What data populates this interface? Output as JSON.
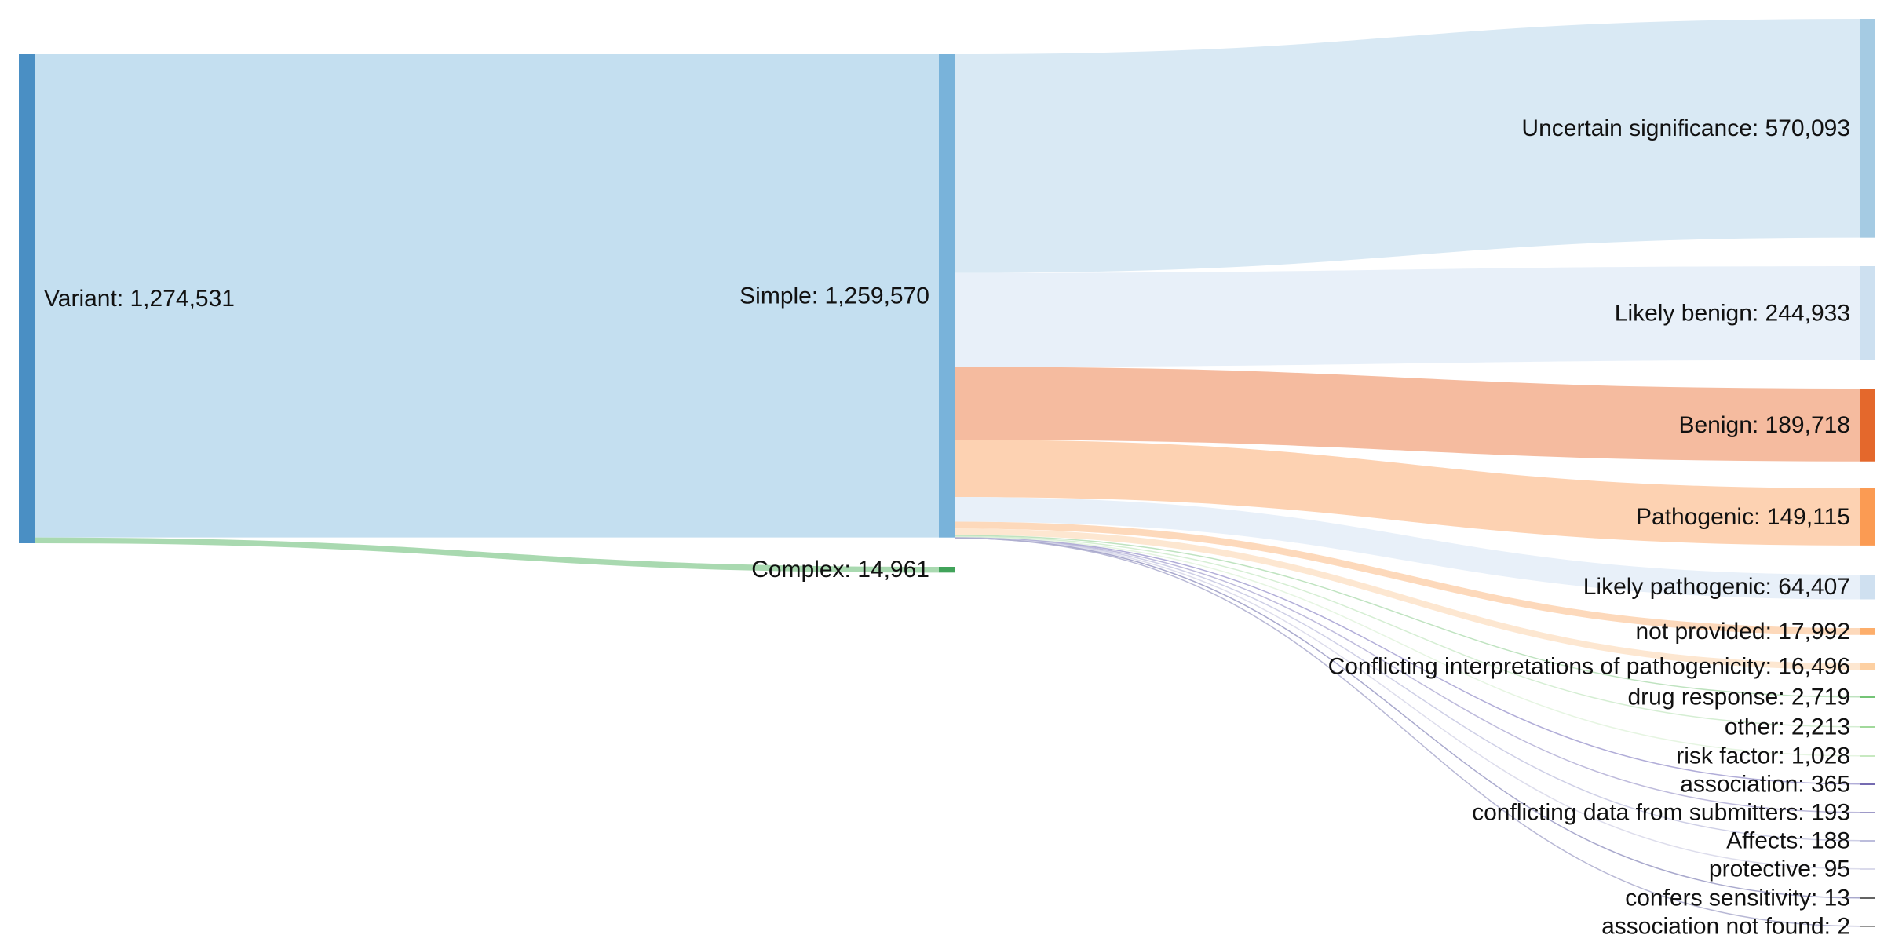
{
  "chart_data": {
    "type": "sankey",
    "nodes": [
      {
        "id": "variant",
        "label": "Variant: 1,274,531",
        "name": "Variant",
        "value": 1274531,
        "color": "#4a8fc4"
      },
      {
        "id": "simple",
        "label": "Simple: 1,259,570",
        "name": "Simple",
        "value": 1259570,
        "color": "#79b3da"
      },
      {
        "id": "complex",
        "label": "Complex: 14,961",
        "name": "Complex",
        "value": 14961,
        "color": "#41a35a"
      },
      {
        "id": "uncertain",
        "label": "Uncertain significance: 570,093",
        "name": "Uncertain significance",
        "value": 570093,
        "color": "#a5cbe3"
      },
      {
        "id": "likely-benign",
        "label": "Likely benign: 244,933",
        "name": "Likely benign",
        "value": 244933,
        "color": "#cde0f0"
      },
      {
        "id": "benign",
        "label": "Benign: 189,718",
        "name": "Benign",
        "value": 189718,
        "color": "#e4682c"
      },
      {
        "id": "pathogenic",
        "label": "Pathogenic: 149,115",
        "name": "Pathogenic",
        "value": 149115,
        "color": "#fb9b53"
      },
      {
        "id": "likely-pathogenic",
        "label": "Likely pathogenic: 64,407",
        "name": "Likely pathogenic",
        "value": 64407,
        "color": "#cfe0f0"
      },
      {
        "id": "not-provided",
        "label": "not provided: 17,992",
        "name": "not provided",
        "value": 17992,
        "color": "#fdae6b"
      },
      {
        "id": "conflicting-interpretations",
        "label": "Conflicting interpretations of pathogenicity: 16,496",
        "name": "Conflicting interpretations of pathogenicity",
        "value": 16496,
        "color": "#fdd0a2"
      },
      {
        "id": "drug-response",
        "label": "drug response: 2,719",
        "name": "drug response",
        "value": 2719,
        "color": "#74c476"
      },
      {
        "id": "other",
        "label": "other: 2,213",
        "name": "other",
        "value": 2213,
        "color": "#a1d99b"
      },
      {
        "id": "risk-factor",
        "label": "risk factor: 1,028",
        "name": "risk factor",
        "value": 1028,
        "color": "#c7e9c0"
      },
      {
        "id": "association",
        "label": "association: 365",
        "name": "association",
        "value": 365,
        "color": "#756bb1"
      },
      {
        "id": "conflicting-data",
        "label": "conflicting data from submitters: 193",
        "name": "conflicting data from submitters",
        "value": 193,
        "color": "#9e9ac8"
      },
      {
        "id": "affects",
        "label": "Affects: 188",
        "name": "Affects",
        "value": 188,
        "color": "#bcbddc"
      },
      {
        "id": "protective",
        "label": "protective: 95",
        "name": "protective",
        "value": 95,
        "color": "#dadaeb"
      },
      {
        "id": "confers-sensitivity",
        "label": "confers sensitivity: 13",
        "name": "confers sensitivity",
        "value": 13,
        "color": "#636363"
      },
      {
        "id": "association-not-found",
        "label": "association not found: 2",
        "name": "association not found",
        "value": 2,
        "color": "#969696"
      }
    ],
    "links": [
      {
        "source": "variant",
        "target": "simple",
        "value": 1259570,
        "color": "#c4dff0"
      },
      {
        "source": "variant",
        "target": "complex",
        "value": 14961,
        "color": "#a9d9b0"
      },
      {
        "source": "simple",
        "target": "uncertain",
        "value": 570093,
        "color": "#d9e9f4"
      },
      {
        "source": "simple",
        "target": "likely-benign",
        "value": 244933,
        "color": "#e8f0f9"
      },
      {
        "source": "simple",
        "target": "benign",
        "value": 189718,
        "color": "#f5bb9f"
      },
      {
        "source": "simple",
        "target": "pathogenic",
        "value": 149115,
        "color": "#fdd2b2"
      },
      {
        "source": "simple",
        "target": "likely-pathogenic",
        "value": 64407,
        "color": "#e8f0f9"
      },
      {
        "source": "simple",
        "target": "not-provided",
        "value": 17992,
        "color": "#fdd9bb"
      },
      {
        "source": "simple",
        "target": "conflicting-interpretations",
        "value": 16496,
        "color": "#fde7d1"
      },
      {
        "source": "simple",
        "target": "drug-response",
        "value": 2719,
        "color": "#b8e0b9"
      },
      {
        "source": "simple",
        "target": "other",
        "value": 2213,
        "color": "#d0ecce"
      },
      {
        "source": "simple",
        "target": "risk-factor",
        "value": 1028,
        "color": "#e3f4df"
      },
      {
        "source": "simple",
        "target": "association",
        "value": 365,
        "color": "#a9a4d4"
      },
      {
        "source": "simple",
        "target": "conflicting-data",
        "value": 193,
        "color": "#b7b4d8"
      },
      {
        "source": "simple",
        "target": "affects",
        "value": 188,
        "color": "#c9cae3"
      },
      {
        "source": "simple",
        "target": "protective",
        "value": 95,
        "color": "#d9d9ea"
      },
      {
        "source": "simple",
        "target": "confers-sensitivity",
        "value": 13,
        "color": "#a0a0c8"
      },
      {
        "source": "simple",
        "target": "association-not-found",
        "value": 2,
        "color": "#b0b0d0"
      }
    ]
  }
}
